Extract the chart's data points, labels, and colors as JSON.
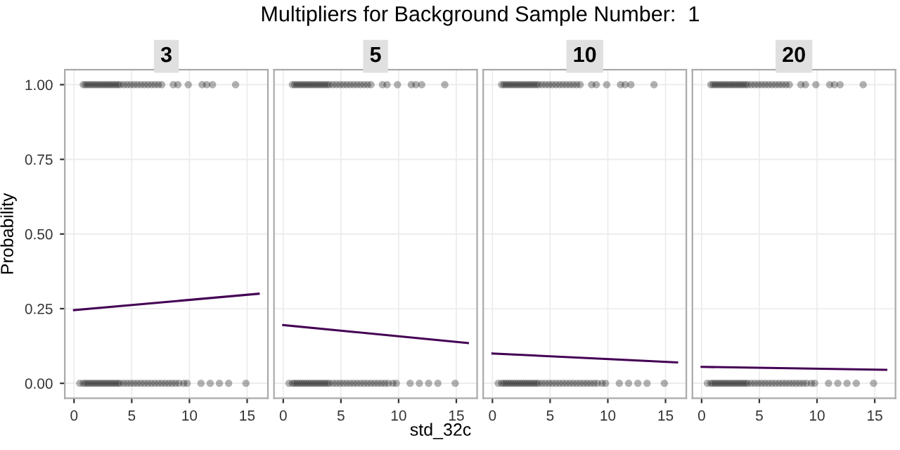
{
  "chart_data": [
    {
      "type": "scatter",
      "title": "Multipliers for Background Sample Number:  1",
      "subtitle": "3",
      "ylabel": "Probability",
      "xlim": [
        -0.8,
        16.8
      ],
      "ylim": [
        -0.05,
        1.05
      ],
      "xticks": [
        0,
        5,
        10,
        15
      ],
      "yticks": [
        {
          "value": 0,
          "label": "0.00"
        },
        {
          "value": 0.25,
          "label": "0.25"
        },
        {
          "value": 0.5,
          "label": "0.50"
        },
        {
          "value": 0.75,
          "label": "0.75"
        },
        {
          "value": 1,
          "label": "1.00"
        }
      ],
      "grid": true,
      "series": [
        {
          "color": "#000000",
          "x": [
            0.8,
            1.0,
            1.2,
            1.4,
            1.6,
            1.8,
            2.0,
            2.2,
            2.4,
            2.6,
            2.8,
            3.0,
            3.2,
            3.4,
            3.6,
            3.8,
            4.0,
            4.3,
            4.6,
            4.9,
            5.2,
            5.5,
            5.8,
            6.1,
            6.4,
            6.7,
            7.0,
            7.3,
            7.6,
            8.6,
            9.0,
            9.9,
            11.1,
            11.5,
            12.0,
            14.0,
            0.5,
            0.8,
            1.0,
            1.2,
            1.4,
            1.6,
            1.8,
            2.0,
            2.2,
            2.4,
            2.6,
            2.8,
            3.0,
            3.2,
            3.4,
            3.6,
            3.8,
            4.0,
            4.3,
            4.6,
            4.9,
            5.2,
            5.5,
            5.8,
            6.1,
            6.4,
            6.7,
            7.0,
            7.3,
            7.6,
            7.9,
            8.2,
            8.5,
            8.8,
            9.1,
            9.5,
            9.8,
            11.0,
            11.8,
            12.6,
            13.4,
            14.9
          ],
          "values": [
            1,
            1,
            1,
            1,
            1,
            1,
            1,
            1,
            1,
            1,
            1,
            1,
            1,
            1,
            1,
            1,
            1,
            1,
            1,
            1,
            1,
            1,
            1,
            1,
            1,
            1,
            1,
            1,
            1,
            1,
            1,
            1,
            1,
            1,
            1,
            1,
            0,
            0,
            0,
            0,
            0,
            0,
            0,
            0,
            0,
            0,
            0,
            0,
            0,
            0,
            0,
            0,
            0,
            0,
            0,
            0,
            0,
            0,
            0,
            0,
            0,
            0,
            0,
            0,
            0,
            0,
            0,
            0,
            0,
            0,
            0,
            0,
            0,
            0,
            0,
            0,
            0,
            0
          ]
        },
        {
          "type": "line",
          "color": "#440154",
          "x": [
            0,
            16
          ],
          "values": [
            0.245,
            0.3
          ]
        }
      ]
    },
    {
      "type": "scatter",
      "subtitle": "5",
      "xlabel": "std_32c",
      "xlim": [
        -0.8,
        16.8
      ],
      "ylim": [
        -0.05,
        1.05
      ],
      "xticks": [
        0,
        5,
        10,
        15
      ],
      "yticks": [
        0,
        0.25,
        0.5,
        0.75,
        1
      ],
      "grid": true,
      "tick_labels": "x",
      "series": [
        {
          "color": "#000000",
          "x": [
            0.8,
            1.0,
            1.2,
            1.4,
            1.6,
            1.8,
            2.0,
            2.2,
            2.4,
            2.6,
            2.8,
            3.0,
            3.2,
            3.4,
            3.6,
            3.8,
            4.0,
            4.3,
            4.6,
            4.9,
            5.2,
            5.5,
            5.8,
            6.1,
            6.4,
            6.7,
            7.0,
            7.3,
            7.6,
            8.6,
            9.0,
            9.9,
            11.1,
            11.5,
            12.0,
            14.0,
            0.5,
            0.8,
            1.0,
            1.2,
            1.4,
            1.6,
            1.8,
            2.0,
            2.2,
            2.4,
            2.6,
            2.8,
            3.0,
            3.2,
            3.4,
            3.6,
            3.8,
            4.0,
            4.3,
            4.6,
            4.9,
            5.2,
            5.5,
            5.8,
            6.1,
            6.4,
            6.7,
            7.0,
            7.3,
            7.6,
            7.9,
            8.2,
            8.5,
            8.8,
            9.1,
            9.5,
            9.8,
            11.0,
            11.8,
            12.6,
            13.4,
            14.9
          ],
          "values": [
            1,
            1,
            1,
            1,
            1,
            1,
            1,
            1,
            1,
            1,
            1,
            1,
            1,
            1,
            1,
            1,
            1,
            1,
            1,
            1,
            1,
            1,
            1,
            1,
            1,
            1,
            1,
            1,
            1,
            1,
            1,
            1,
            1,
            1,
            1,
            1,
            0,
            0,
            0,
            0,
            0,
            0,
            0,
            0,
            0,
            0,
            0,
            0,
            0,
            0,
            0,
            0,
            0,
            0,
            0,
            0,
            0,
            0,
            0,
            0,
            0,
            0,
            0,
            0,
            0,
            0,
            0,
            0,
            0,
            0,
            0,
            0,
            0,
            0,
            0,
            0,
            0,
            0
          ]
        },
        {
          "type": "line",
          "color": "#440154",
          "x": [
            0,
            16
          ],
          "values": [
            0.195,
            0.135
          ]
        }
      ]
    },
    {
      "type": "scatter",
      "subtitle": "10",
      "xlim": [
        -0.8,
        16.8
      ],
      "ylim": [
        -0.05,
        1.05
      ],
      "xticks": [
        0,
        5,
        10,
        15
      ],
      "yticks": [
        0,
        0.25,
        0.5,
        0.75,
        1
      ],
      "grid": true,
      "tick_labels": "x",
      "series": [
        {
          "color": "#000000",
          "x": [
            0.8,
            1.0,
            1.2,
            1.4,
            1.6,
            1.8,
            2.0,
            2.2,
            2.4,
            2.6,
            2.8,
            3.0,
            3.2,
            3.4,
            3.6,
            3.8,
            4.0,
            4.3,
            4.6,
            4.9,
            5.2,
            5.5,
            5.8,
            6.1,
            6.4,
            6.7,
            7.0,
            7.3,
            7.6,
            8.6,
            9.0,
            9.9,
            11.1,
            11.5,
            12.0,
            14.0,
            0.5,
            0.8,
            1.0,
            1.2,
            1.4,
            1.6,
            1.8,
            2.0,
            2.2,
            2.4,
            2.6,
            2.8,
            3.0,
            3.2,
            3.4,
            3.6,
            3.8,
            4.0,
            4.3,
            4.6,
            4.9,
            5.2,
            5.5,
            5.8,
            6.1,
            6.4,
            6.7,
            7.0,
            7.3,
            7.6,
            7.9,
            8.2,
            8.5,
            8.8,
            9.1,
            9.5,
            9.8,
            11.0,
            11.8,
            12.6,
            13.4,
            14.9
          ],
          "values": [
            1,
            1,
            1,
            1,
            1,
            1,
            1,
            1,
            1,
            1,
            1,
            1,
            1,
            1,
            1,
            1,
            1,
            1,
            1,
            1,
            1,
            1,
            1,
            1,
            1,
            1,
            1,
            1,
            1,
            1,
            1,
            1,
            1,
            1,
            1,
            1,
            0,
            0,
            0,
            0,
            0,
            0,
            0,
            0,
            0,
            0,
            0,
            0,
            0,
            0,
            0,
            0,
            0,
            0,
            0,
            0,
            0,
            0,
            0,
            0,
            0,
            0,
            0,
            0,
            0,
            0,
            0,
            0,
            0,
            0,
            0,
            0,
            0,
            0,
            0,
            0,
            0,
            0
          ]
        },
        {
          "type": "line",
          "color": "#440154",
          "x": [
            0,
            16
          ],
          "values": [
            0.1,
            0.07
          ]
        }
      ]
    },
    {
      "type": "scatter",
      "subtitle": "20",
      "xlim": [
        -0.8,
        16.8
      ],
      "ylim": [
        -0.05,
        1.05
      ],
      "xticks": [
        0,
        5,
        10,
        15
      ],
      "yticks": [
        0,
        0.25,
        0.5,
        0.75,
        1
      ],
      "grid": true,
      "tick_labels": "x",
      "series": [
        {
          "color": "#000000",
          "x": [
            0.8,
            1.0,
            1.2,
            1.4,
            1.6,
            1.8,
            2.0,
            2.2,
            2.4,
            2.6,
            2.8,
            3.0,
            3.2,
            3.4,
            3.6,
            3.8,
            4.0,
            4.3,
            4.6,
            4.9,
            5.2,
            5.5,
            5.8,
            6.1,
            6.4,
            6.7,
            7.0,
            7.3,
            7.6,
            8.6,
            9.0,
            9.9,
            11.1,
            11.5,
            12.0,
            14.0,
            0.5,
            0.8,
            1.0,
            1.2,
            1.4,
            1.6,
            1.8,
            2.0,
            2.2,
            2.4,
            2.6,
            2.8,
            3.0,
            3.2,
            3.4,
            3.6,
            3.8,
            4.0,
            4.3,
            4.6,
            4.9,
            5.2,
            5.5,
            5.8,
            6.1,
            6.4,
            6.7,
            7.0,
            7.3,
            7.6,
            7.9,
            8.2,
            8.5,
            8.8,
            9.1,
            9.5,
            9.8,
            11.0,
            11.8,
            12.6,
            13.4,
            14.9
          ],
          "values": [
            1,
            1,
            1,
            1,
            1,
            1,
            1,
            1,
            1,
            1,
            1,
            1,
            1,
            1,
            1,
            1,
            1,
            1,
            1,
            1,
            1,
            1,
            1,
            1,
            1,
            1,
            1,
            1,
            1,
            1,
            1,
            1,
            1,
            1,
            1,
            1,
            0,
            0,
            0,
            0,
            0,
            0,
            0,
            0,
            0,
            0,
            0,
            0,
            0,
            0,
            0,
            0,
            0,
            0,
            0,
            0,
            0,
            0,
            0,
            0,
            0,
            0,
            0,
            0,
            0,
            0,
            0,
            0,
            0,
            0,
            0,
            0,
            0,
            0,
            0,
            0,
            0,
            0
          ]
        },
        {
          "type": "line",
          "color": "#440154",
          "x": [
            0,
            16
          ],
          "values": [
            0.055,
            0.045
          ]
        }
      ]
    }
  ]
}
